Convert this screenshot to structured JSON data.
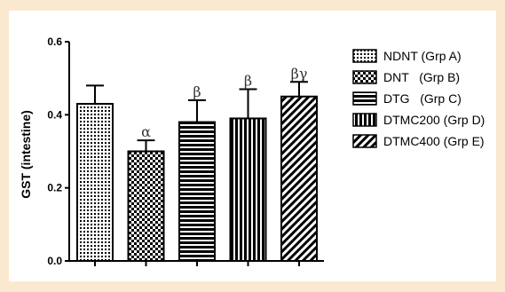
{
  "chart_data": {
    "type": "bar",
    "title": "",
    "xlabel": "",
    "ylabel": "GST (intestine)",
    "ylim": [
      0,
      0.6
    ],
    "yticks": [
      "0.0",
      "0.2",
      "0.4",
      "0.6"
    ],
    "ytick_values": [
      0,
      0.2,
      0.4,
      0.6
    ],
    "grid": false,
    "legend_position": "right",
    "categories": [
      "NDNT (Grp A)",
      "DNT   (Grp B)",
      "DTG   (Grp C)",
      "DTMC200 (Grp D)",
      "DTMC400 (Grp E)"
    ],
    "values": [
      0.43,
      0.3,
      0.38,
      0.39,
      0.45
    ],
    "errors": [
      0.05,
      0.03,
      0.06,
      0.08,
      0.04
    ],
    "significance": [
      "",
      "α",
      "β",
      "β",
      "βγ"
    ],
    "patterns": [
      "dots",
      "checker",
      "horizontal",
      "vertical",
      "diagonal"
    ]
  }
}
